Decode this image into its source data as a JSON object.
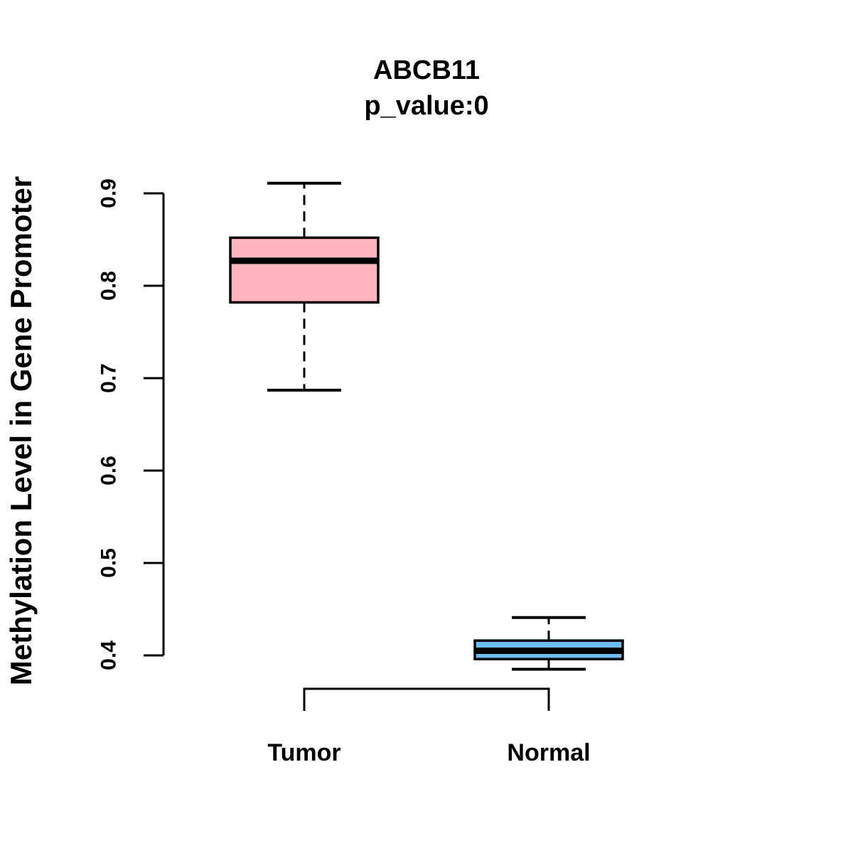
{
  "chart_data": {
    "type": "boxplot",
    "title": "ABCB11",
    "subtitle": "p_value:0",
    "xlabel": "",
    "ylabel": "Methylation Level in Gene Promoter",
    "categories": [
      "Tumor",
      "Normal"
    ],
    "series": [
      {
        "name": "Tumor",
        "stats": {
          "min": 0.687,
          "q1": 0.782,
          "median": 0.827,
          "q3": 0.852,
          "max": 0.911
        },
        "fill": "#FFB6C1"
      },
      {
        "name": "Normal",
        "stats": {
          "min": 0.385,
          "q1": 0.396,
          "median": 0.405,
          "q3": 0.416,
          "max": 0.441
        },
        "fill": "#6FBDF0"
      }
    ],
    "y_ticks": [
      0.4,
      0.5,
      0.6,
      0.7,
      0.8,
      0.9
    ],
    "ylim": [
      0.36,
      0.93
    ],
    "grid": false,
    "legend_position": "none",
    "whisker_style": "dashed",
    "colors": {
      "stroke": "#000000",
      "median": "#000000",
      "background": "#FFFFFF",
      "tumor_fill": "#FFB6C1",
      "normal_fill": "#6FBDF0"
    }
  }
}
